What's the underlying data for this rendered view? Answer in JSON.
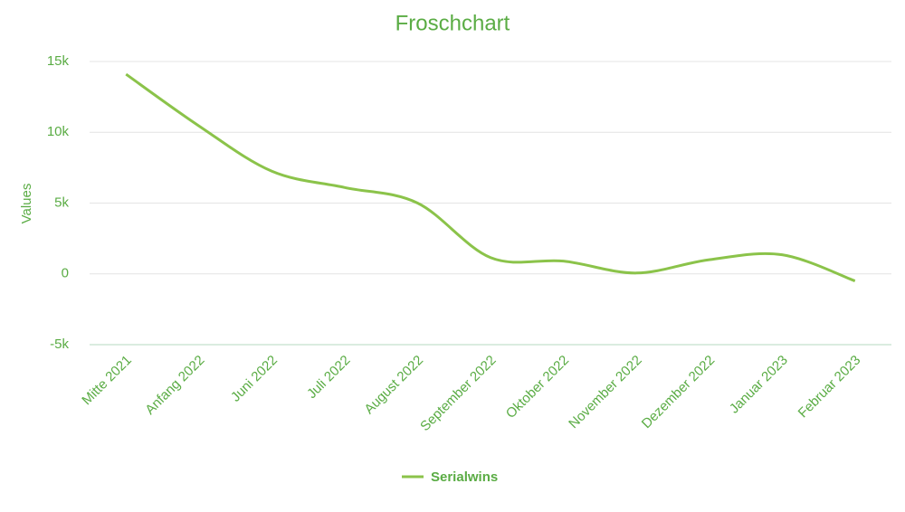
{
  "chart_data": {
    "type": "line",
    "title": "Froschchart",
    "y_label": "Values",
    "categories": [
      "Mitte 2021",
      "Anfang 2022",
      "Juni 2022",
      "Juli 2022",
      "August 2022",
      "September 2022",
      "Oktober 2022",
      "November 2022",
      "Dezember 2022",
      "Januar 2023",
      "Februar 2023"
    ],
    "series": [
      {
        "name": "Serialwins",
        "color": "#8bc34a",
        "values": [
          14100,
          10450,
          7250,
          6100,
          5000,
          1150,
          900,
          60,
          1000,
          1350,
          -500
        ]
      }
    ],
    "ylim": [
      -5000,
      15000
    ],
    "yticks": [
      {
        "value": -5000,
        "label": "-5k"
      },
      0,
      {
        "value": 5000,
        "label": "5k"
      },
      {
        "value": 10000,
        "label": "10k"
      },
      {
        "value": 15000,
        "label": "15k"
      }
    ],
    "grid": true,
    "legend": "bottom"
  }
}
